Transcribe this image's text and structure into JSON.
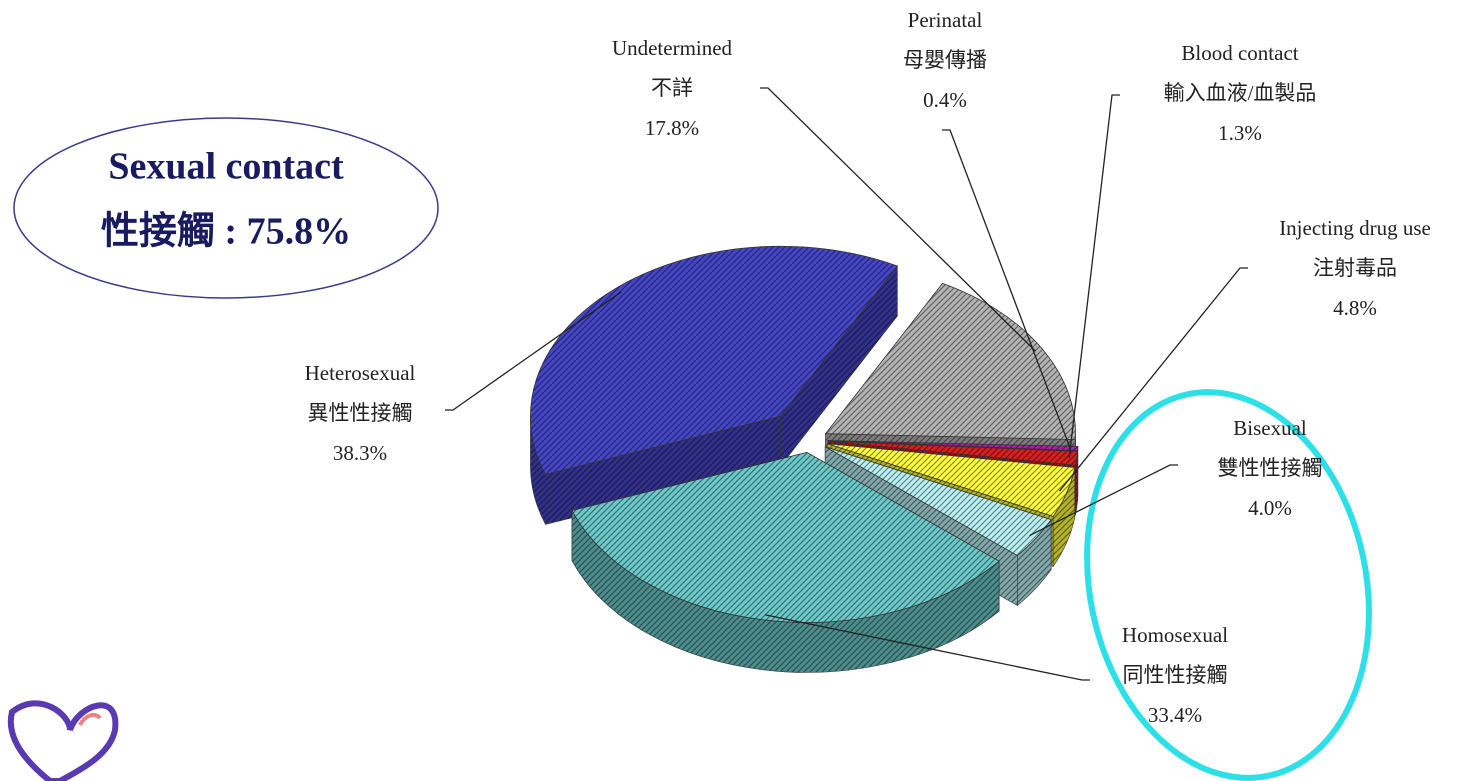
{
  "chart_data": {
    "type": "pie",
    "categories": [
      "Heterosexual",
      "Undetermined",
      "Perinatal",
      "Blood contact",
      "Injecting drug use",
      "Bisexual",
      "Homosexual"
    ],
    "categories_zh": [
      "異性性接觸",
      "不詳",
      "母嬰傳播",
      "輸入血液/血製品",
      "注射毒品",
      "雙性性接觸",
      "同性性接觸"
    ],
    "values": [
      38.3,
      17.8,
      0.4,
      1.3,
      4.8,
      4.0,
      33.4
    ],
    "value_labels": [
      "38.3%",
      "17.8%",
      "0.4%",
      "1.3%",
      "4.8%",
      "4.0%",
      "33.4%"
    ],
    "colors": [
      "#4646c8",
      "#b4b4b4",
      "#b020b0",
      "#d82020",
      "#ffff40",
      "#b8f0f4",
      "#6ccaca"
    ],
    "annotation": {
      "line1": "Sexual contact",
      "line2": "性接觸 : 75.8%"
    }
  }
}
